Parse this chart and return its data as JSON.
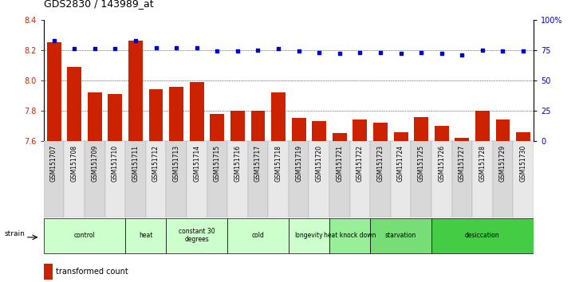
{
  "title": "GDS2830 / 143989_at",
  "samples": [
    "GSM151707",
    "GSM151708",
    "GSM151709",
    "GSM151710",
    "GSM151711",
    "GSM151712",
    "GSM151713",
    "GSM151714",
    "GSM151715",
    "GSM151716",
    "GSM151717",
    "GSM151718",
    "GSM151719",
    "GSM151720",
    "GSM151721",
    "GSM151722",
    "GSM151723",
    "GSM151724",
    "GSM151725",
    "GSM151726",
    "GSM151727",
    "GSM151728",
    "GSM151729",
    "GSM151730"
  ],
  "bar_values": [
    8.25,
    8.09,
    7.92,
    7.91,
    8.26,
    7.94,
    7.96,
    7.99,
    7.78,
    7.8,
    7.8,
    7.92,
    7.75,
    7.73,
    7.65,
    7.74,
    7.72,
    7.66,
    7.76,
    7.7,
    7.62,
    7.8,
    7.74,
    7.66
  ],
  "percentile_values": [
    83,
    76,
    76,
    76,
    83,
    77,
    77,
    77,
    74,
    74,
    75,
    76,
    74,
    73,
    72,
    73,
    73,
    72,
    73,
    72,
    71,
    75,
    74,
    74
  ],
  "ylim_left": [
    7.6,
    8.4
  ],
  "ylim_right": [
    0,
    100
  ],
  "yticks_left": [
    7.6,
    7.8,
    8.0,
    8.2,
    8.4
  ],
  "yticks_right": [
    0,
    25,
    50,
    75,
    100
  ],
  "ytick_labels_right": [
    "0",
    "25",
    "50",
    "75",
    "100%"
  ],
  "bar_color": "#cc2200",
  "scatter_color": "#0000cc",
  "groups": [
    {
      "label": "control",
      "start": 0,
      "end": 3,
      "color": "#ccffcc"
    },
    {
      "label": "heat",
      "start": 4,
      "end": 5,
      "color": "#ccffcc"
    },
    {
      "label": "constant 30\ndegrees",
      "start": 6,
      "end": 8,
      "color": "#ccffcc"
    },
    {
      "label": "cold",
      "start": 9,
      "end": 11,
      "color": "#ccffcc"
    },
    {
      "label": "longevity",
      "start": 12,
      "end": 13,
      "color": "#ccffcc"
    },
    {
      "label": "heat knock down",
      "start": 14,
      "end": 15,
      "color": "#99ee99"
    },
    {
      "label": "starvation",
      "start": 16,
      "end": 18,
      "color": "#77dd77"
    },
    {
      "label": "desiccation",
      "start": 19,
      "end": 23,
      "color": "#44cc44"
    }
  ],
  "tick_label_color_left": "#cc2200",
  "tick_label_color_right": "#0000cc",
  "bar_width": 0.7,
  "ybaseline": 7.6
}
